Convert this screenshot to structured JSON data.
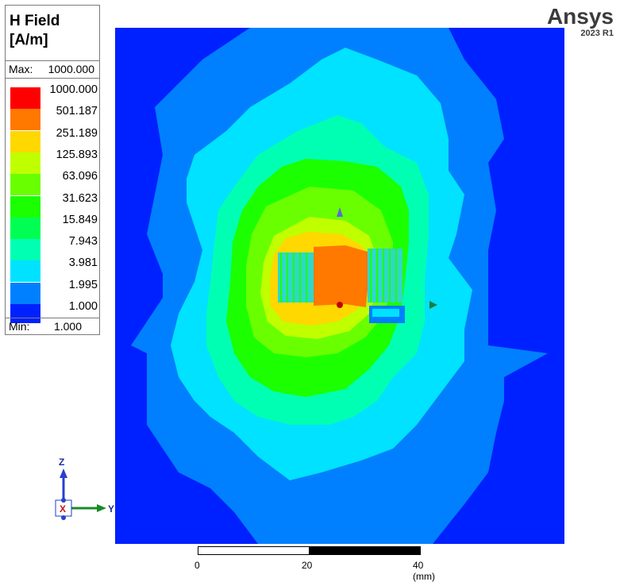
{
  "legend": {
    "title_line1": "H Field",
    "title_line2": "[A/m]",
    "max_label": "Max:",
    "max_value": "1000.000",
    "min_label": "Min:",
    "min_value": "1.000",
    "levels": [
      {
        "value": "1000.000",
        "color": "#ff0000"
      },
      {
        "value": "501.187",
        "color": "#ff7800"
      },
      {
        "value": "251.189",
        "color": "#ffd800"
      },
      {
        "value": "125.893",
        "color": "#bfff00"
      },
      {
        "value": "63.096",
        "color": "#6aff00"
      },
      {
        "value": "31.623",
        "color": "#1cff00"
      },
      {
        "value": "15.849",
        "color": "#00ff52"
      },
      {
        "value": "7.943",
        "color": "#00ffb3"
      },
      {
        "value": "3.981",
        "color": "#00e2ff"
      },
      {
        "value": "1.995",
        "color": "#0080ff"
      },
      {
        "value": "1.000",
        "color": "#0021ff"
      }
    ]
  },
  "brand": {
    "name": "Ansys",
    "version": "2023 R1"
  },
  "scale": {
    "labels": [
      "0",
      "20",
      "40 (mm)"
    ]
  },
  "triad": {
    "z_label": "Z",
    "y_label": "Y",
    "x_label": "X"
  }
}
